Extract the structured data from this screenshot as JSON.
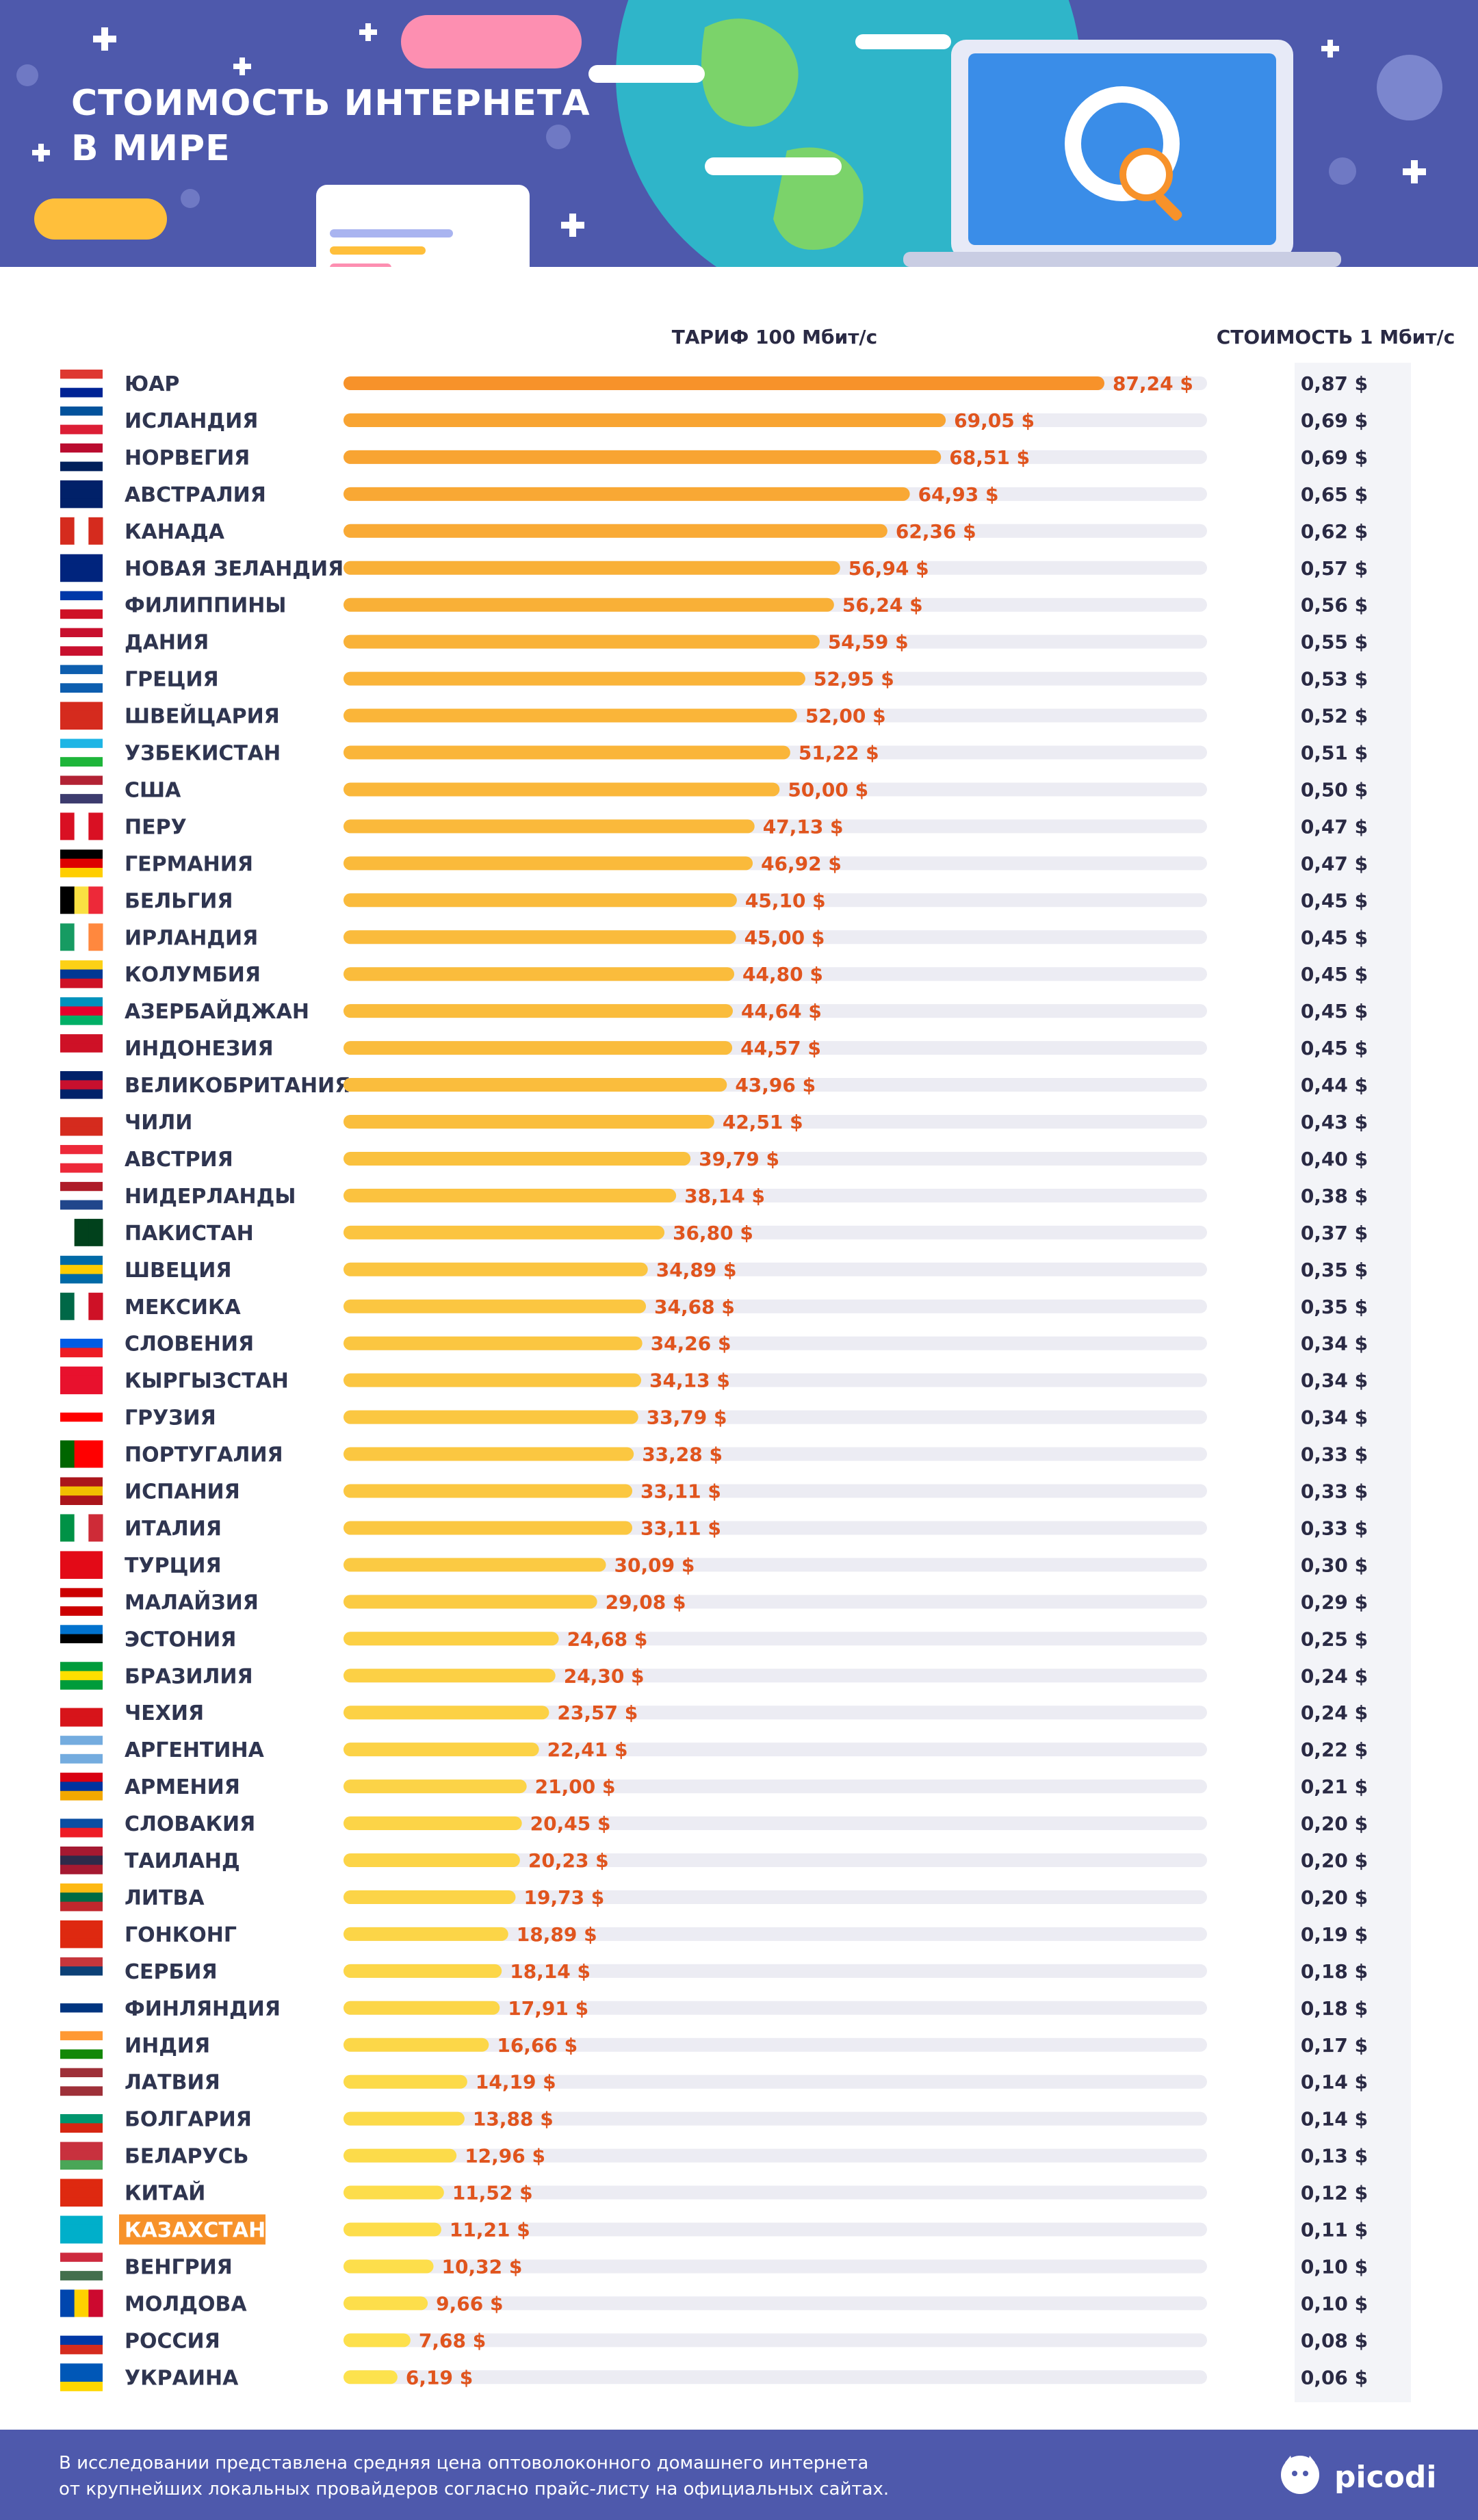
{
  "header": {
    "title_line1": "СТОИМОСТЬ ИНТЕРНЕТА",
    "title_line2": "В МИРЕ",
    "colors": {
      "background": "#4e59ac",
      "globe": "#2fb5c9",
      "laptop": "#3a8de8"
    }
  },
  "chart_data": {
    "type": "bar",
    "orientation": "horizontal",
    "tariff_label": "ТАРИФ 100 Мбит/с",
    "cost_label": "СТОИМОСТЬ 1 Мбит/с",
    "highlighted": "КАЗАХСТАН",
    "colors": {
      "high": "#f7922a",
      "low": "#fde24d",
      "track": "#ececf3",
      "value_text": "#e0541d",
      "highlight": "#f7922a"
    },
    "rows": [
      {
        "country": "ЮАР",
        "flag": "za",
        "tariff": 87.24,
        "tariff_label": "87,24 $",
        "per_mbit": "0,87 $"
      },
      {
        "country": "ИСЛАНДИЯ",
        "flag": "is",
        "tariff": 69.05,
        "tariff_label": "69,05 $",
        "per_mbit": "0,69 $"
      },
      {
        "country": "НОРВЕГИЯ",
        "flag": "no",
        "tariff": 68.51,
        "tariff_label": "68,51 $",
        "per_mbit": "0,69 $"
      },
      {
        "country": "АВСТРАЛИЯ",
        "flag": "au",
        "tariff": 64.93,
        "tariff_label": "64,93 $",
        "per_mbit": "0,65 $"
      },
      {
        "country": "КАНАДА",
        "flag": "ca",
        "tariff": 62.36,
        "tariff_label": "62,36 $",
        "per_mbit": "0,62 $"
      },
      {
        "country": "НОВАЯ ЗЕЛАНДИЯ",
        "flag": "nz",
        "tariff": 56.94,
        "tariff_label": "56,94 $",
        "per_mbit": "0,57 $"
      },
      {
        "country": "ФИЛИППИНЫ",
        "flag": "ph",
        "tariff": 56.24,
        "tariff_label": "56,24 $",
        "per_mbit": "0,56 $"
      },
      {
        "country": "ДАНИЯ",
        "flag": "dk",
        "tariff": 54.59,
        "tariff_label": "54,59 $",
        "per_mbit": "0,55 $"
      },
      {
        "country": "ГРЕЦИЯ",
        "flag": "gr",
        "tariff": 52.95,
        "tariff_label": "52,95 $",
        "per_mbit": "0,53 $"
      },
      {
        "country": "ШВЕЙЦАРИЯ",
        "flag": "ch",
        "tariff": 52.0,
        "tariff_label": "52,00 $",
        "per_mbit": "0,52 $"
      },
      {
        "country": "УЗБЕКИСТАН",
        "flag": "uz",
        "tariff": 51.22,
        "tariff_label": "51,22 $",
        "per_mbit": "0,51 $"
      },
      {
        "country": "США",
        "flag": "us",
        "tariff": 50.0,
        "tariff_label": "50,00 $",
        "per_mbit": "0,50 $"
      },
      {
        "country": "ПЕРУ",
        "flag": "pe",
        "tariff": 47.13,
        "tariff_label": "47,13 $",
        "per_mbit": "0,47 $"
      },
      {
        "country": "ГЕРМАНИЯ",
        "flag": "de",
        "tariff": 46.92,
        "tariff_label": "46,92 $",
        "per_mbit": "0,47 $"
      },
      {
        "country": "БЕЛЬГИЯ",
        "flag": "be",
        "tariff": 45.1,
        "tariff_label": "45,10 $",
        "per_mbit": "0,45 $"
      },
      {
        "country": "ИРЛАНДИЯ",
        "flag": "ie",
        "tariff": 45.0,
        "tariff_label": "45,00 $",
        "per_mbit": "0,45 $"
      },
      {
        "country": "КОЛУМБИЯ",
        "flag": "co",
        "tariff": 44.8,
        "tariff_label": "44,80 $",
        "per_mbit": "0,45 $"
      },
      {
        "country": "АЗЕРБАЙДЖАН",
        "flag": "az",
        "tariff": 44.64,
        "tariff_label": "44,64 $",
        "per_mbit": "0,45 $"
      },
      {
        "country": "ИНДОНЕЗИЯ",
        "flag": "id",
        "tariff": 44.57,
        "tariff_label": "44,57 $",
        "per_mbit": "0,45 $"
      },
      {
        "country": "ВЕЛИКОБРИТАНИЯ",
        "flag": "gb",
        "tariff": 43.96,
        "tariff_label": "43,96 $",
        "per_mbit": "0,44 $"
      },
      {
        "country": "ЧИЛИ",
        "flag": "cl",
        "tariff": 42.51,
        "tariff_label": "42,51 $",
        "per_mbit": "0,43 $"
      },
      {
        "country": "АВСТРИЯ",
        "flag": "at",
        "tariff": 39.79,
        "tariff_label": "39,79 $",
        "per_mbit": "0,40 $"
      },
      {
        "country": "НИДЕРЛАНДЫ",
        "flag": "nl",
        "tariff": 38.14,
        "tariff_label": "38,14 $",
        "per_mbit": "0,38 $"
      },
      {
        "country": "ПАКИСТАН",
        "flag": "pk",
        "tariff": 36.8,
        "tariff_label": "36,80 $",
        "per_mbit": "0,37 $"
      },
      {
        "country": "ШВЕЦИЯ",
        "flag": "se",
        "tariff": 34.89,
        "tariff_label": "34,89 $",
        "per_mbit": "0,35 $"
      },
      {
        "country": "МЕКСИКА",
        "flag": "mx",
        "tariff": 34.68,
        "tariff_label": "34,68 $",
        "per_mbit": "0,35 $"
      },
      {
        "country": "СЛОВЕНИЯ",
        "flag": "si",
        "tariff": 34.26,
        "tariff_label": "34,26 $",
        "per_mbit": "0,34 $"
      },
      {
        "country": "КЫРГЫЗСТАН",
        "flag": "kg",
        "tariff": 34.13,
        "tariff_label": "34,13 $",
        "per_mbit": "0,34 $"
      },
      {
        "country": "ГРУЗИЯ",
        "flag": "ge",
        "tariff": 33.79,
        "tariff_label": "33,79 $",
        "per_mbit": "0,34 $"
      },
      {
        "country": "ПОРТУГАЛИЯ",
        "flag": "pt",
        "tariff": 33.28,
        "tariff_label": "33,28 $",
        "per_mbit": "0,33 $"
      },
      {
        "country": "ИСПАНИЯ",
        "flag": "es",
        "tariff": 33.11,
        "tariff_label": "33,11 $",
        "per_mbit": "0,33 $"
      },
      {
        "country": "ИТАЛИЯ",
        "flag": "it",
        "tariff": 33.11,
        "tariff_label": "33,11 $",
        "per_mbit": "0,33 $"
      },
      {
        "country": "ТУРЦИЯ",
        "flag": "tr",
        "tariff": 30.09,
        "tariff_label": "30,09 $",
        "per_mbit": "0,30 $"
      },
      {
        "country": "МАЛАЙЗИЯ",
        "flag": "my",
        "tariff": 29.08,
        "tariff_label": "29,08 $",
        "per_mbit": "0,29 $"
      },
      {
        "country": "ЭСТОНИЯ",
        "flag": "ee",
        "tariff": 24.68,
        "tariff_label": "24,68 $",
        "per_mbit": "0,25 $"
      },
      {
        "country": "БРАЗИЛИЯ",
        "flag": "br",
        "tariff": 24.3,
        "tariff_label": "24,30 $",
        "per_mbit": "0,24 $"
      },
      {
        "country": "ЧЕХИЯ",
        "flag": "cz",
        "tariff": 23.57,
        "tariff_label": "23,57 $",
        "per_mbit": "0,24 $"
      },
      {
        "country": "АРГЕНТИНА",
        "flag": "ar",
        "tariff": 22.41,
        "tariff_label": "22,41 $",
        "per_mbit": "0,22 $"
      },
      {
        "country": "АРМЕНИЯ",
        "flag": "am",
        "tariff": 21.0,
        "tariff_label": "21,00 $",
        "per_mbit": "0,21 $"
      },
      {
        "country": "СЛОВАКИЯ",
        "flag": "sk",
        "tariff": 20.45,
        "tariff_label": "20,45 $",
        "per_mbit": "0,20 $"
      },
      {
        "country": "ТАИЛАНД",
        "flag": "th",
        "tariff": 20.23,
        "tariff_label": "20,23 $",
        "per_mbit": "0,20 $"
      },
      {
        "country": "ЛИТВА",
        "flag": "lt",
        "tariff": 19.73,
        "tariff_label": "19,73 $",
        "per_mbit": "0,20 $"
      },
      {
        "country": "ГОНКОНГ",
        "flag": "hk",
        "tariff": 18.89,
        "tariff_label": "18,89 $",
        "per_mbit": "0,19 $"
      },
      {
        "country": "СЕРБИЯ",
        "flag": "rs",
        "tariff": 18.14,
        "tariff_label": "18,14 $",
        "per_mbit": "0,18 $"
      },
      {
        "country": "ФИНЛЯНДИЯ",
        "flag": "fi",
        "tariff": 17.91,
        "tariff_label": "17,91 $",
        "per_mbit": "0,18 $"
      },
      {
        "country": "ИНДИЯ",
        "flag": "in",
        "tariff": 16.66,
        "tariff_label": "16,66 $",
        "per_mbit": "0,17 $"
      },
      {
        "country": "ЛАТВИЯ",
        "flag": "lv",
        "tariff": 14.19,
        "tariff_label": "14,19 $",
        "per_mbit": "0,14 $"
      },
      {
        "country": "БОЛГАРИЯ",
        "flag": "bg",
        "tariff": 13.88,
        "tariff_label": "13,88 $",
        "per_mbit": "0,14 $"
      },
      {
        "country": "БЕЛАРУСЬ",
        "flag": "by",
        "tariff": 12.96,
        "tariff_label": "12,96 $",
        "per_mbit": "0,13 $"
      },
      {
        "country": "КИТАЙ",
        "flag": "cn",
        "tariff": 11.52,
        "tariff_label": "11,52 $",
        "per_mbit": "0,12 $"
      },
      {
        "country": "КАЗАХСТАН",
        "flag": "kz",
        "tariff": 11.21,
        "tariff_label": "11,21 $",
        "per_mbit": "0,11 $"
      },
      {
        "country": "ВЕНГРИЯ",
        "flag": "hu",
        "tariff": 10.32,
        "tariff_label": "10,32 $",
        "per_mbit": "0,10 $"
      },
      {
        "country": "МОЛДОВА",
        "flag": "md",
        "tariff": 9.66,
        "tariff_label": "9,66 $",
        "per_mbit": "0,10 $"
      },
      {
        "country": "РОССИЯ",
        "flag": "ru",
        "tariff": 7.68,
        "tariff_label": "7,68 $",
        "per_mbit": "0,08 $"
      },
      {
        "country": "УКРАИНА",
        "flag": "ua",
        "tariff": 6.19,
        "tariff_label": "6,19 $",
        "per_mbit": "0,06 $"
      }
    ]
  },
  "footer": {
    "note_line1": "В исследовании представлена средняя цена оптоволоконного домашнего интернета",
    "note_line2": "от крупнейших локальных провайдеров согласно прайс-листу на официальных сайтах.",
    "brand": "picodi",
    "brand_icon": "picodi-cat-logo-icon"
  }
}
